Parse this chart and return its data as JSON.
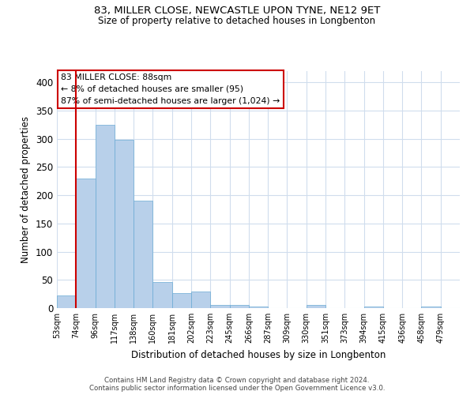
{
  "title1": "83, MILLER CLOSE, NEWCASTLE UPON TYNE, NE12 9ET",
  "title2": "Size of property relative to detached houses in Longbenton",
  "xlabel": "Distribution of detached houses by size in Longbenton",
  "ylabel": "Number of detached properties",
  "bins": [
    "53sqm",
    "74sqm",
    "96sqm",
    "117sqm",
    "138sqm",
    "160sqm",
    "181sqm",
    "202sqm",
    "223sqm",
    "245sqm",
    "266sqm",
    "287sqm",
    "309sqm",
    "330sqm",
    "351sqm",
    "373sqm",
    "394sqm",
    "415sqm",
    "436sqm",
    "458sqm",
    "479sqm"
  ],
  "values": [
    22,
    230,
    325,
    298,
    190,
    46,
    27,
    29,
    5,
    6,
    3,
    0,
    0,
    5,
    0,
    0,
    3,
    0,
    0,
    3,
    0
  ],
  "bar_color": "#b8d0ea",
  "bar_edge_color": "#6aaad4",
  "grid_color": "#d0dded",
  "annotation_text": "83 MILLER CLOSE: 88sqm\n← 8% of detached houses are smaller (95)\n87% of semi-detached houses are larger (1,024) →",
  "vline_x": 1,
  "vline_color": "#cc0000",
  "annotation_box_color": "#ffffff",
  "annotation_box_edge": "#cc0000",
  "footnote1": "Contains HM Land Registry data © Crown copyright and database right 2024.",
  "footnote2": "Contains public sector information licensed under the Open Government Licence v3.0.",
  "ylim": [
    0,
    420
  ],
  "yticks": [
    0,
    50,
    100,
    150,
    200,
    250,
    300,
    350,
    400
  ]
}
